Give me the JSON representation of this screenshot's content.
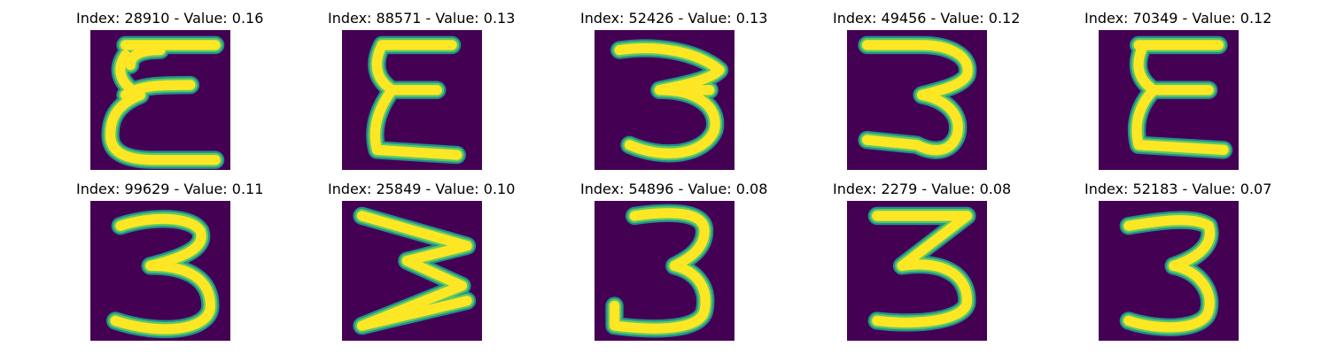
{
  "colors": {
    "background": "#440154",
    "stroke_edge": "#21918c",
    "stroke_mid": "#5ec962",
    "stroke_core": "#fde725"
  },
  "panels": [
    {
      "title": "Index: 28910 - Value: 0.16",
      "glyph": "sigma"
    },
    {
      "title": "Index: 88571 - Value: 0.13",
      "glyph": "sigma"
    },
    {
      "title": "Index: 52426 - Value: 0.13",
      "glyph": "three"
    },
    {
      "title": "Index: 49456 - Value: 0.12",
      "glyph": "three"
    },
    {
      "title": "Index: 70349 - Value: 0.12",
      "glyph": "sigma"
    },
    {
      "title": "Index: 99629 - Value: 0.11",
      "glyph": "three"
    },
    {
      "title": "Index: 25849 - Value: 0.10",
      "glyph": "three"
    },
    {
      "title": "Index: 54896 - Value: 0.08",
      "glyph": "three"
    },
    {
      "title": "Index: 2279 - Value: 0.08",
      "glyph": "three"
    },
    {
      "title": "Index: 52183 - Value: 0.07",
      "glyph": "three"
    }
  ]
}
